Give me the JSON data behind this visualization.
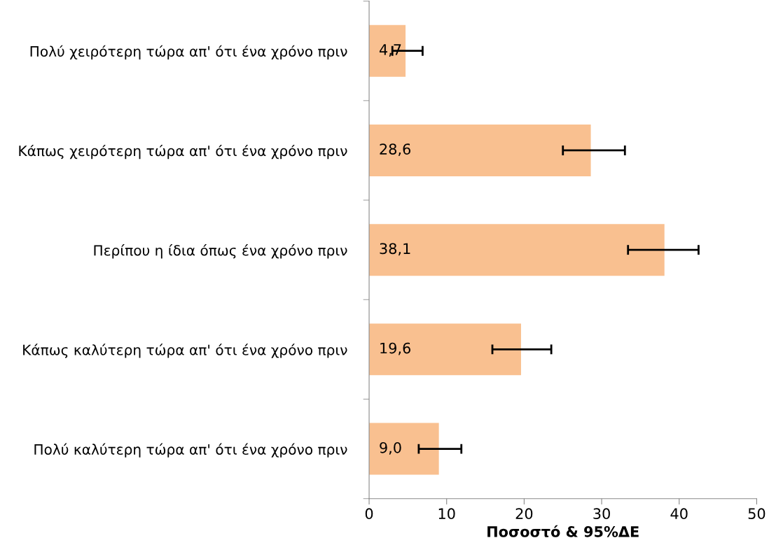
{
  "chart_data": {
    "type": "bar",
    "orientation": "horizontal",
    "categories": [
      "Πολύ χειρότερη τώρα απ' ότι ένα χρόνο πριν",
      "Κάπως χειρότερη τώρα απ' ότι ένα χρόνο πριν",
      "Περίπου η ίδια όπως ένα χρόνο πριν",
      "Κάπως καλύτερη τώρα απ' ότι ένα χρόνο πριν",
      "Πολύ καλύτερη τώρα απ' ότι ένα χρόνο πριν"
    ],
    "values": [
      4.7,
      28.6,
      38.1,
      19.6,
      9.0
    ],
    "value_labels": [
      "4,7",
      "28,6",
      "38,1",
      "19,6",
      "9,0"
    ],
    "errors": [
      [
        3.0,
        6.9
      ],
      [
        25.0,
        33.0
      ],
      [
        33.4,
        42.5
      ],
      [
        15.9,
        23.5
      ],
      [
        6.4,
        11.9
      ]
    ],
    "color": "#f9c090",
    "xlim": [
      0,
      50
    ],
    "xticks": [
      0,
      10,
      20,
      30,
      40,
      50
    ],
    "xlabel": "Ποσοστό & 95%ΔΕ",
    "grid": false,
    "legend": false
  }
}
